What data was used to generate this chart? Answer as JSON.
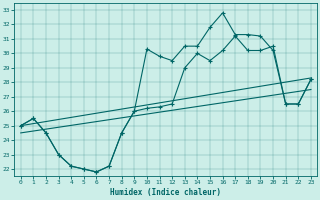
{
  "xlabel": "Humidex (Indice chaleur)",
  "bg_color": "#cceee8",
  "line_color": "#006666",
  "xlim": [
    -0.5,
    23.5
  ],
  "ylim": [
    21.5,
    33.5
  ],
  "xticks": [
    0,
    1,
    2,
    3,
    4,
    5,
    6,
    7,
    8,
    9,
    10,
    11,
    12,
    13,
    14,
    15,
    16,
    17,
    18,
    19,
    20,
    21,
    22,
    23
  ],
  "yticks": [
    22,
    23,
    24,
    25,
    26,
    27,
    28,
    29,
    30,
    31,
    32,
    33
  ],
  "line1_x": [
    0,
    1,
    2,
    3,
    4,
    5,
    6,
    7,
    8,
    9,
    10,
    11,
    12,
    13,
    14,
    15,
    16,
    17,
    18,
    19,
    20,
    21,
    22,
    23
  ],
  "line1_y": [
    25.0,
    25.5,
    24.5,
    23.0,
    22.2,
    22.0,
    21.8,
    22.2,
    24.5,
    26.0,
    26.2,
    26.3,
    26.5,
    29.0,
    30.0,
    29.5,
    30.2,
    31.2,
    30.2,
    30.2,
    30.5,
    26.5,
    26.5,
    28.2
  ],
  "line2_x": [
    0,
    1,
    2,
    3,
    4,
    5,
    6,
    7,
    8,
    9,
    10,
    11,
    12,
    13,
    14,
    15,
    16,
    17,
    18,
    19,
    20,
    21,
    22,
    23
  ],
  "line2_y": [
    25.0,
    25.5,
    24.5,
    23.0,
    22.2,
    22.0,
    21.8,
    22.2,
    24.5,
    26.0,
    30.3,
    29.8,
    29.5,
    30.5,
    30.5,
    31.8,
    32.8,
    31.3,
    31.3,
    31.2,
    30.2,
    26.5,
    26.5,
    28.2
  ],
  "line3_x": [
    0,
    23
  ],
  "line3_y": [
    25.0,
    28.3
  ],
  "line4_x": [
    0,
    23
  ],
  "line4_y": [
    24.5,
    27.5
  ]
}
